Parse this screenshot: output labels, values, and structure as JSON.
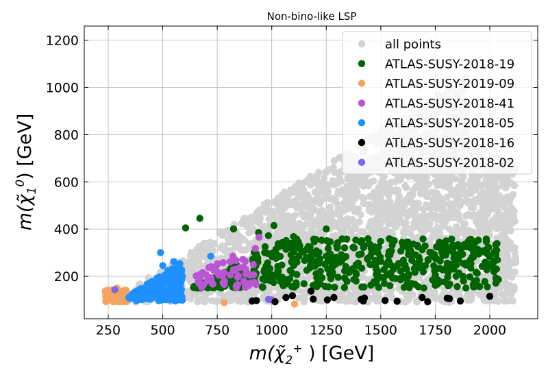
{
  "chart_data": {
    "type": "scatter",
    "title": "Non-bino-like LSP",
    "xlabel": {
      "m": "m(",
      "chi": "χ̃",
      "sub": "2",
      "sup": "+",
      "rest": " ) [GeV]"
    },
    "ylabel": {
      "m": "m(",
      "chi": "χ̃",
      "sub": "1",
      "sup": "0",
      "rest": ") [GeV]"
    },
    "xlim": [
      140,
      2220
    ],
    "ylim": [
      20,
      1260
    ],
    "xticks": [
      250,
      500,
      750,
      1000,
      1250,
      1500,
      1750,
      2000
    ],
    "yticks": [
      200,
      400,
      600,
      800,
      1000,
      1200
    ],
    "grid": true,
    "legend_position": "top-right",
    "series": [
      {
        "name": "all points",
        "color": "#d3d3d3",
        "generated": "background",
        "count": 2600
      },
      {
        "name": "ATLAS-SUSY-2018-19",
        "color": "#006400",
        "generated": "green",
        "count": 560,
        "extra_points": [
          [
            605,
            405
          ],
          [
            670,
            445
          ],
          [
            825,
            400
          ],
          [
            1010,
            415
          ],
          [
            1250,
            400
          ],
          [
            1995,
            322
          ],
          [
            1800,
            350
          ],
          [
            940,
            385
          ],
          [
            985,
            372
          ],
          [
            1100,
            368
          ]
        ]
      },
      {
        "name": "ATLAS-SUSY-2019-09",
        "color": "#f4a460",
        "generated": "orange",
        "count": 110,
        "extra_points": [
          [
            782,
            88
          ],
          [
            1105,
            82
          ],
          [
            290,
            150
          ]
        ]
      },
      {
        "name": "ATLAS-SUSY-2018-41",
        "color": "#ba55d3",
        "generated": "purple",
        "count": 60,
        "extra_points": [
          [
            942,
            365
          ],
          [
            925,
            318
          ],
          [
            822,
            285
          ],
          [
            1000,
            100
          ]
        ]
      },
      {
        "name": "ATLAS-SUSY-2018-05",
        "color": "#1e90ff",
        "generated": "blue",
        "count": 190,
        "extra_points": [
          [
            490,
            300
          ],
          [
            500,
            245
          ],
          [
            550,
            262
          ],
          [
            720,
            285
          ]
        ]
      },
      {
        "name": "ATLAS-SUSY-2018-16",
        "color": "#000000",
        "generated": "none",
        "points": [
          [
            910,
            95
          ],
          [
            930,
            97
          ],
          [
            1015,
            92
          ],
          [
            1065,
            110
          ],
          [
            1095,
            118
          ],
          [
            1180,
            137
          ],
          [
            1190,
            103
          ],
          [
            1255,
            100
          ],
          [
            1285,
            110
          ],
          [
            1410,
            102
          ],
          [
            1420,
            95
          ],
          [
            1425,
            108
          ],
          [
            1520,
            97
          ],
          [
            1575,
            94
          ],
          [
            1690,
            110
          ],
          [
            1715,
            92
          ],
          [
            1805,
            107
          ],
          [
            1815,
            105
          ],
          [
            1865,
            95
          ],
          [
            2000,
            115
          ]
        ]
      },
      {
        "name": "ATLAS-SUSY-2018-02",
        "color": "#7b68ee",
        "generated": "none",
        "points": [
          [
            280,
            143
          ],
          [
            985,
            102
          ]
        ]
      }
    ]
  }
}
